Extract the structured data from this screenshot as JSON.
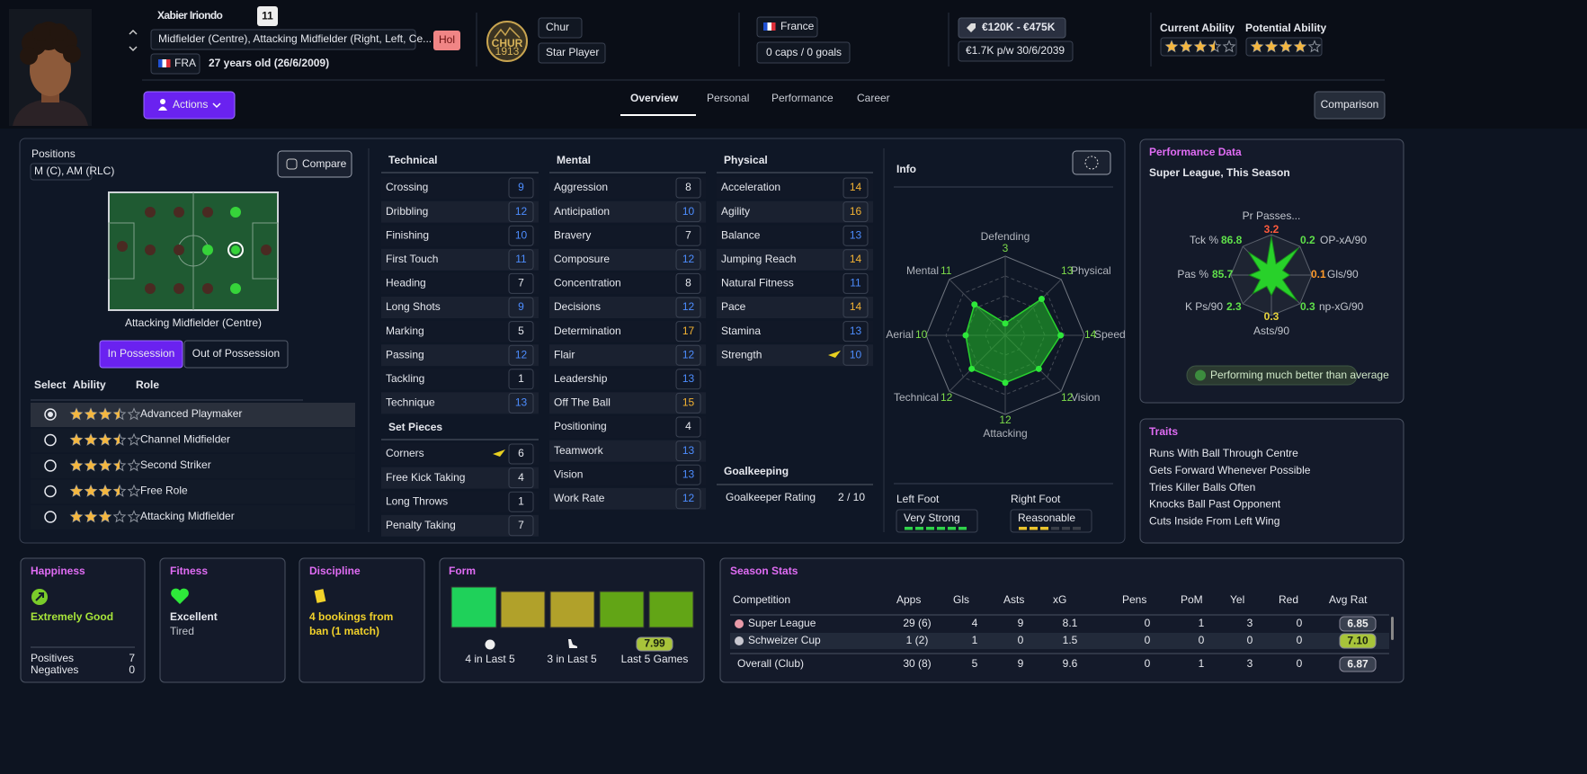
{
  "header": {
    "name": "Xabier Iriondo",
    "squad_number": "11",
    "positions": "Midfielder (Centre), Attacking Midfielder (Right, Left, Ce...",
    "tag": "Hol",
    "nation_code": "FRA",
    "age": "27 years old (26/6/2009)",
    "club_badge": {
      "name": "CHUR",
      "year": "1913"
    },
    "club": "Chur",
    "squad_status": "Star Player",
    "nation": "France",
    "caps": "0 caps / 0 goals",
    "value": "€120K - €475K",
    "contract": "€1.7K p/w 30/6/2039",
    "abilities": [
      {
        "label": "Current Ability",
        "stars": 3.5
      },
      {
        "label": "Potential Ability",
        "stars": 4
      }
    ]
  },
  "nav": {
    "actions": "Actions",
    "tabs": [
      "Overview",
      "Personal",
      "Performance",
      "Career"
    ],
    "comparison": "Comparison"
  },
  "positions": {
    "label": "Positions",
    "value": "M (C), AM (RLC)",
    "compare": "Compare",
    "selected": "Attacking Midfielder (Centre)",
    "phases": [
      "In Possession",
      "Out of Possession"
    ],
    "columns": [
      "Select",
      "Ability",
      "Role"
    ],
    "roles": [
      {
        "name": "Advanced Playmaker",
        "stars": 3.5
      },
      {
        "name": "Channel Midfielder",
        "stars": 3.5
      },
      {
        "name": "Second Striker",
        "stars": 3.5
      },
      {
        "name": "Free Role",
        "stars": 3.5
      },
      {
        "name": "Attacking Midfielder",
        "stars": 3
      }
    ]
  },
  "attributes": {
    "technical": {
      "title": "Technical",
      "items": [
        {
          "name": "Crossing",
          "value": 9
        },
        {
          "name": "Dribbling",
          "value": 12
        },
        {
          "name": "Finishing",
          "value": 10
        },
        {
          "name": "First Touch",
          "value": 11
        },
        {
          "name": "Heading",
          "value": 7
        },
        {
          "name": "Long Shots",
          "value": 9
        },
        {
          "name": "Marking",
          "value": 5
        },
        {
          "name": "Passing",
          "value": 12
        },
        {
          "name": "Tackling",
          "value": 1
        },
        {
          "name": "Technique",
          "value": 13
        }
      ]
    },
    "set_pieces": {
      "title": "Set Pieces",
      "items": [
        {
          "name": "Corners",
          "value": 6
        },
        {
          "name": "Free Kick Taking",
          "value": 4
        },
        {
          "name": "Long Throws",
          "value": 1
        },
        {
          "name": "Penalty Taking",
          "value": 7
        }
      ]
    },
    "mental": {
      "title": "Mental",
      "items": [
        {
          "name": "Aggression",
          "value": 8
        },
        {
          "name": "Anticipation",
          "value": 10
        },
        {
          "name": "Bravery",
          "value": 7
        },
        {
          "name": "Composure",
          "value": 12
        },
        {
          "name": "Concentration",
          "value": 8
        },
        {
          "name": "Decisions",
          "value": 12
        },
        {
          "name": "Determination",
          "value": 17
        },
        {
          "name": "Flair",
          "value": 12
        },
        {
          "name": "Leadership",
          "value": 13
        },
        {
          "name": "Off The Ball",
          "value": 15
        },
        {
          "name": "Positioning",
          "value": 4
        },
        {
          "name": "Teamwork",
          "value": 13
        },
        {
          "name": "Vision",
          "value": 13
        },
        {
          "name": "Work Rate",
          "value": 12
        }
      ]
    },
    "physical": {
      "title": "Physical",
      "items": [
        {
          "name": "Acceleration",
          "value": 14
        },
        {
          "name": "Agility",
          "value": 16
        },
        {
          "name": "Balance",
          "value": 13
        },
        {
          "name": "Jumping Reach",
          "value": 14
        },
        {
          "name": "Natural Fitness",
          "value": 11
        },
        {
          "name": "Pace",
          "value": 14
        },
        {
          "name": "Stamina",
          "value": 13
        },
        {
          "name": "Strength",
          "value": 10
        }
      ]
    },
    "goalkeeping": {
      "title": "Goalkeeping",
      "label": "Goalkeeper Rating",
      "value": "2 / 10"
    }
  },
  "info": {
    "title": "Info",
    "radar": {
      "rlim": [
        0,
        20
      ],
      "axes": [
        {
          "name": "Defending",
          "value": 3
        },
        {
          "name": "Physical",
          "value": 13
        },
        {
          "name": "Speed",
          "value": 14
        },
        {
          "name": "Vision",
          "value": 12
        },
        {
          "name": "Attacking",
          "value": 12
        },
        {
          "name": "Technical",
          "value": 12
        },
        {
          "name": "Aerial",
          "value": 10
        },
        {
          "name": "Mental",
          "value": 11
        }
      ]
    },
    "feet": [
      {
        "label": "Left Foot",
        "rating": "Very Strong",
        "level": 6,
        "color": "#2fd14a"
      },
      {
        "label": "Right Foot",
        "rating": "Reasonable",
        "level": 3,
        "color": "#e8c22c"
      }
    ]
  },
  "performance": {
    "title": "Performance Data",
    "subtitle": "Super League, This Season",
    "metrics": [
      {
        "name": "Pr Passes...",
        "value": 3.2,
        "color": "#ff5a3c"
      },
      {
        "name": "OP-xA/90",
        "value": 0.2,
        "color": "#5fe04a"
      },
      {
        "name": "Gls/90",
        "value": 0.1,
        "color": "#ff9a2a"
      },
      {
        "name": "np-xG/90",
        "value": 0.3,
        "color": "#5fe04a"
      },
      {
        "name": "Asts/90",
        "value": 0.3,
        "color": "#e6d23a"
      },
      {
        "name": "K Ps/90",
        "value": 2.3,
        "color": "#5fe04a"
      },
      {
        "name": "Pas %",
        "value": 85.7,
        "color": "#5fe04a"
      },
      {
        "name": "Tck %",
        "value": 86.8,
        "color": "#5fe04a"
      }
    ],
    "verdict": "Performing much better than average"
  },
  "traits": {
    "title": "Traits",
    "items": [
      "Runs With Ball Through Centre",
      "Gets Forward Whenever Possible",
      "Tries Killer Balls Often",
      "Knocks Ball Past Opponent",
      "Cuts Inside From Left Wing"
    ]
  },
  "happiness": {
    "title": "Happiness",
    "status": "Extremely Good",
    "rows": [
      {
        "label": "Positives",
        "value": 7
      },
      {
        "label": "Negatives",
        "value": 0
      }
    ]
  },
  "fitness": {
    "title": "Fitness",
    "status": "Excellent",
    "detail": "Tired"
  },
  "discipline": {
    "title": "Discipline",
    "status": [
      "4 bookings from",
      "ban (1 match)"
    ]
  },
  "form": {
    "title": "Form",
    "goals": "4 in Last 5",
    "assists": "3 in Last 5",
    "average": 7.99,
    "average_label": "Last 5 Games"
  },
  "season_stats": {
    "title": "Season Stats",
    "columns": [
      "Competition",
      "Apps",
      "Gls",
      "Asts",
      "xG",
      "Pens",
      "PoM",
      "Yel",
      "Red",
      "Avg Rat"
    ],
    "rows": [
      [
        "Super League",
        "29 (6)",
        "4",
        "9",
        "8.1",
        "0",
        "1",
        "3",
        "0",
        "6.85"
      ],
      [
        "Schweizer Cup",
        "1 (2)",
        "1",
        "0",
        "1.5",
        "0",
        "0",
        "0",
        "0",
        "7.10"
      ],
      [
        "Overall (Club)",
        "30 (8)",
        "5",
        "9",
        "9.6",
        "0",
        "1",
        "3",
        "0",
        "6.87"
      ]
    ]
  }
}
